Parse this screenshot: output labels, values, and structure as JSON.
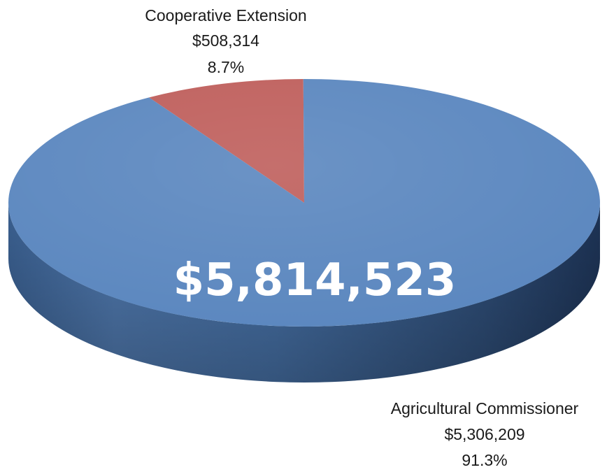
{
  "chart_data": {
    "type": "pie",
    "total_label": "$5,814,523",
    "slices": [
      {
        "name": "Agricultural Commissioner",
        "amount": "$5,306,209",
        "percent": "91.3%",
        "value": 5306209,
        "color": "#5b87bf"
      },
      {
        "name": "Cooperative Extension",
        "amount": "$508,314",
        "percent": "8.7%",
        "value": 508314,
        "color": "#bf5f5c"
      }
    ],
    "legend": "none"
  }
}
